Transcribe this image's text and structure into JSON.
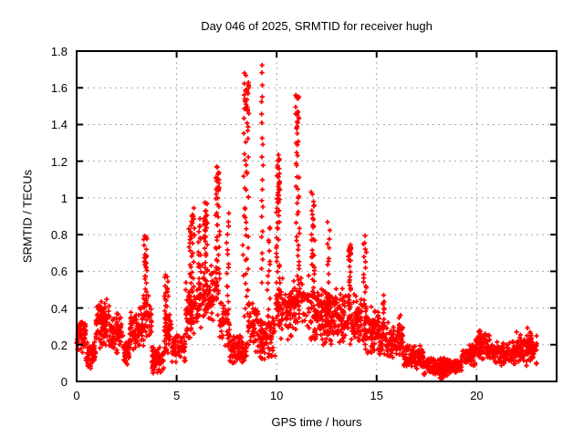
{
  "chart_data": {
    "type": "scatter",
    "title": "Day 046 of 2025, SRMTID for receiver hugh",
    "xlabel": "GPS time / hours",
    "ylabel": "SRMTID / TECUs",
    "xlim": [
      0,
      24
    ],
    "ylim": [
      0,
      1.8
    ],
    "xticks": [
      {
        "v": 0,
        "label": "0"
      },
      {
        "v": 5,
        "label": "5"
      },
      {
        "v": 10,
        "label": "10"
      },
      {
        "v": 15,
        "label": "15"
      },
      {
        "v": 20,
        "label": "20"
      }
    ],
    "yticks": [
      {
        "v": 0,
        "label": "0"
      },
      {
        "v": 0.2,
        "label": "0.2"
      },
      {
        "v": 0.4,
        "label": "0.4"
      },
      {
        "v": 0.6,
        "label": "0.6"
      },
      {
        "v": 0.8,
        "label": "0.8"
      },
      {
        "v": 1,
        "label": "1"
      },
      {
        "v": 1.2,
        "label": "1.2"
      },
      {
        "v": 1.4,
        "label": "1.4"
      },
      {
        "v": 1.6,
        "label": "1.6"
      },
      {
        "v": 1.8,
        "label": "1.8"
      }
    ],
    "grid": true,
    "legend": "none",
    "marker": {
      "shape": "plus",
      "color": "#ff0000",
      "size": 5
    },
    "colors": {
      "border": "#000000",
      "grid": "#a8a8a8",
      "background": "#ffffff"
    },
    "x_data_range": [
      0.0,
      23.0
    ],
    "y_peak": 1.73,
    "y_peak_x": 9.28,
    "band_format": [
      "x_start",
      "x_end",
      "y_min",
      "y_max",
      "count"
    ],
    "bands": [
      [
        0.0,
        0.45,
        0.14,
        0.36,
        55
      ],
      [
        0.45,
        0.95,
        0.05,
        0.22,
        60
      ],
      [
        0.95,
        1.65,
        0.17,
        0.46,
        85
      ],
      [
        1.65,
        2.35,
        0.14,
        0.38,
        75
      ],
      [
        2.35,
        2.65,
        0.08,
        0.24,
        35
      ],
      [
        2.65,
        3.35,
        0.15,
        0.42,
        75
      ],
      [
        3.35,
        3.75,
        0.22,
        0.5,
        40
      ],
      [
        3.75,
        4.35,
        0.03,
        0.2,
        65
      ],
      [
        4.35,
        4.75,
        0.14,
        0.4,
        45
      ],
      [
        4.75,
        5.45,
        0.1,
        0.27,
        65
      ],
      [
        5.45,
        6.25,
        0.22,
        0.55,
        75
      ],
      [
        6.25,
        7.15,
        0.3,
        0.65,
        70
      ],
      [
        7.15,
        7.65,
        0.15,
        0.45,
        45
      ],
      [
        7.65,
        8.55,
        0.08,
        0.26,
        85
      ],
      [
        8.55,
        9.15,
        0.15,
        0.5,
        55
      ],
      [
        9.15,
        9.95,
        0.1,
        0.38,
        75
      ],
      [
        9.95,
        10.85,
        0.2,
        0.58,
        85
      ],
      [
        10.85,
        11.65,
        0.25,
        0.6,
        65
      ],
      [
        11.65,
        12.25,
        0.2,
        0.52,
        65
      ],
      [
        12.25,
        13.35,
        0.17,
        0.52,
        120
      ],
      [
        13.35,
        14.25,
        0.18,
        0.48,
        85
      ],
      [
        14.25,
        15.15,
        0.12,
        0.42,
        95
      ],
      [
        15.15,
        16.35,
        0.1,
        0.33,
        105
      ],
      [
        16.35,
        17.35,
        0.06,
        0.2,
        105
      ],
      [
        17.35,
        19.25,
        0.03,
        0.13,
        190
      ],
      [
        19.25,
        19.95,
        0.08,
        0.21,
        65
      ],
      [
        19.95,
        20.65,
        0.11,
        0.27,
        75
      ],
      [
        20.65,
        21.95,
        0.08,
        0.22,
        115
      ],
      [
        21.95,
        23.0,
        0.08,
        0.28,
        105
      ]
    ],
    "spike_format": [
      "x_center",
      "x_width",
      "y_min",
      "y_max",
      "count"
    ],
    "spikes": [
      [
        3.45,
        0.2,
        0.35,
        0.81,
        28
      ],
      [
        4.5,
        0.22,
        0.38,
        0.58,
        16
      ],
      [
        5.75,
        0.28,
        0.3,
        0.93,
        36
      ],
      [
        6.15,
        0.15,
        0.4,
        0.88,
        22
      ],
      [
        6.45,
        0.2,
        0.45,
        0.97,
        30
      ],
      [
        7.05,
        0.22,
        0.5,
        1.17,
        36
      ],
      [
        7.55,
        0.12,
        0.28,
        0.9,
        18
      ],
      [
        8.45,
        0.3,
        0.35,
        1.66,
        50
      ],
      [
        9.28,
        0.08,
        0.55,
        1.73,
        22
      ],
      [
        9.6,
        0.15,
        0.3,
        0.85,
        16
      ],
      [
        10.08,
        0.2,
        0.4,
        1.25,
        40
      ],
      [
        11.05,
        0.2,
        0.4,
        1.55,
        42
      ],
      [
        11.82,
        0.2,
        0.5,
        1.02,
        30
      ],
      [
        12.6,
        0.12,
        0.55,
        0.86,
        10
      ],
      [
        13.65,
        0.14,
        0.35,
        0.73,
        22
      ],
      [
        14.42,
        0.16,
        0.3,
        0.78,
        22
      ],
      [
        15.32,
        0.12,
        0.25,
        0.46,
        13
      ],
      [
        16.15,
        0.1,
        0.15,
        0.36,
        12
      ],
      [
        20.2,
        0.25,
        0.14,
        0.28,
        18
      ],
      [
        22.65,
        0.25,
        0.12,
        0.28,
        16
      ]
    ],
    "blob_format": [
      "x_center",
      "x_width",
      "y_center",
      "y_halfheight",
      "count"
    ],
    "blobs": [
      [
        8.52,
        0.18,
        1.56,
        0.12,
        16
      ],
      [
        11.05,
        0.16,
        1.48,
        0.1,
        12
      ],
      [
        6.45,
        0.18,
        0.88,
        0.1,
        12
      ],
      [
        5.78,
        0.22,
        0.84,
        0.08,
        10
      ],
      [
        10.08,
        0.15,
        1.05,
        0.12,
        12
      ],
      [
        13.65,
        0.13,
        0.7,
        0.05,
        12
      ],
      [
        3.45,
        0.1,
        0.63,
        0.07,
        8
      ],
      [
        12.4,
        0.45,
        0.38,
        0.12,
        25
      ],
      [
        18.4,
        0.6,
        0.07,
        0.06,
        45
      ],
      [
        1.25,
        0.35,
        0.3,
        0.12,
        18
      ],
      [
        7.05,
        0.15,
        1.1,
        0.08,
        8
      ]
    ]
  }
}
